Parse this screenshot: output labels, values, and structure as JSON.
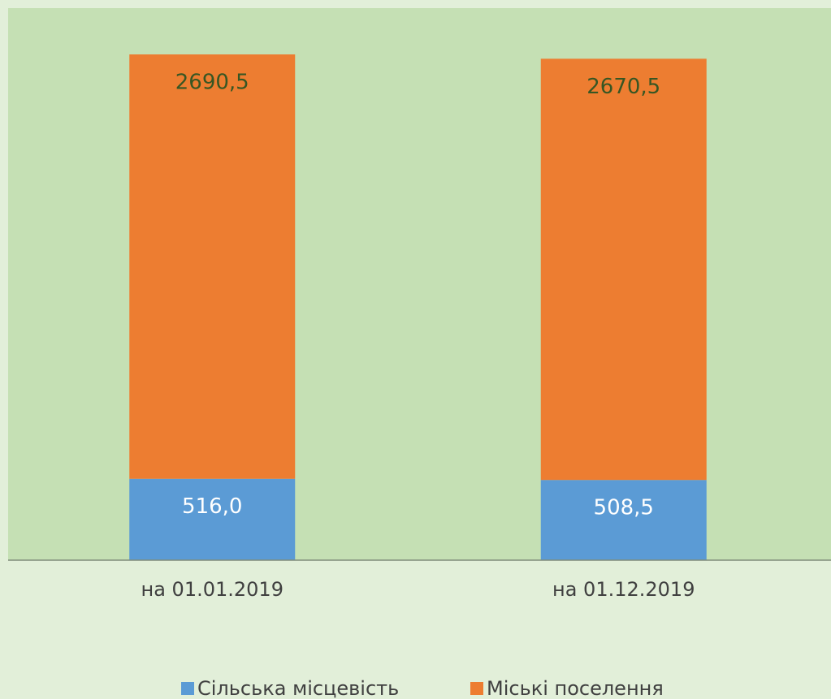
{
  "chart_data": {
    "type": "bar",
    "stacked": true,
    "categories": [
      "на 01.01.2019",
      "на 01.12.2019"
    ],
    "series": [
      {
        "name": "Сільська місцевість",
        "color": "#5b9bd5",
        "values": [
          516.0,
          508.5
        ],
        "value_labels": [
          "516,0",
          "508,5"
        ]
      },
      {
        "name": "Міські поселення",
        "color": "#ed7d31",
        "values": [
          2690.5,
          2670.5
        ],
        "value_labels": [
          "2690,5",
          "2670,5"
        ]
      }
    ],
    "ylim": [
      0,
      3500
    ]
  }
}
